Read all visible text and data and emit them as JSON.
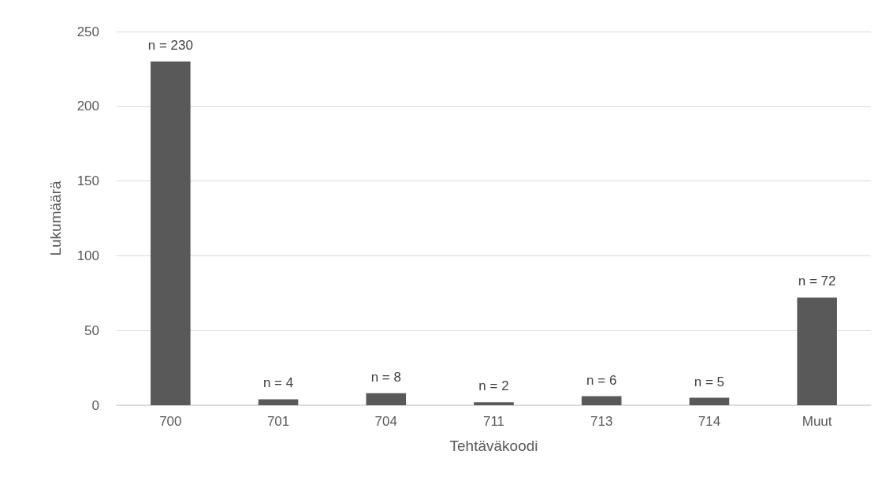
{
  "chart_data": {
    "type": "bar",
    "xlabel": "Tehtäväkoodi",
    "ylabel": "Lukumäärä",
    "categories": [
      "700",
      "701",
      "704",
      "711",
      "713",
      "714",
      "Muut"
    ],
    "values": [
      230,
      4,
      8,
      2,
      6,
      5,
      72
    ],
    "value_labels": [
      "n = 230",
      "n = 4",
      "n = 8",
      "n = 2",
      "n = 6",
      "n = 5",
      "n = 72"
    ],
    "color": "#595959",
    "ylim": [
      0,
      250
    ],
    "yticks": [
      0,
      50,
      100,
      150,
      200,
      250
    ],
    "grid": "y"
  }
}
